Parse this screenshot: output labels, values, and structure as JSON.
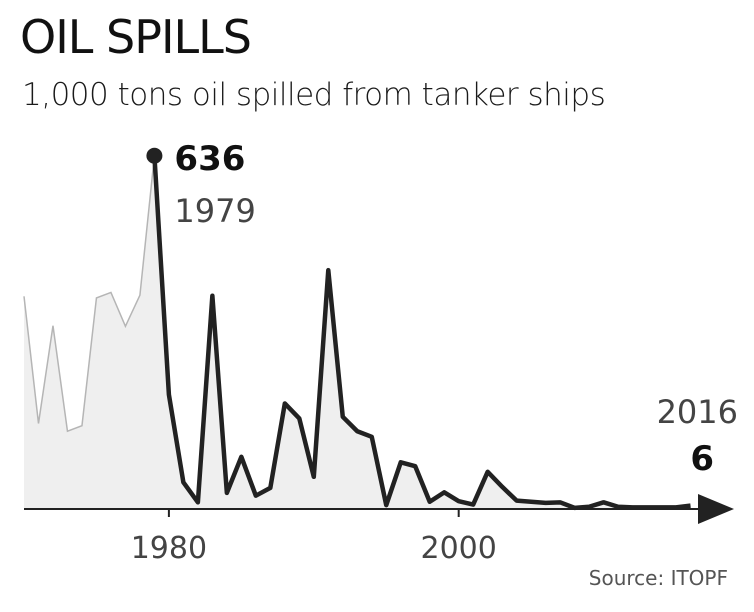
{
  "header": {
    "title": "OIL SPILLS",
    "subtitle": "1,000 tons oil spilled from tanker ships",
    "source": "Source: ITOPF"
  },
  "colors": {
    "line_dark": "#222222",
    "line_light": "#b5b5b5",
    "area_fill": "#efefef",
    "text": "#111111",
    "muted": "#444444"
  },
  "chart_data": {
    "type": "area",
    "title": "OIL SPILLS",
    "subtitle": "1,000 tons oil spilled from tanker ships",
    "xlabel": "",
    "ylabel": "",
    "x": [
      1970,
      1971,
      1972,
      1973,
      1974,
      1975,
      1976,
      1977,
      1978,
      1979,
      1980,
      1981,
      1982,
      1983,
      1984,
      1985,
      1986,
      1987,
      1988,
      1989,
      1990,
      1991,
      1992,
      1993,
      1994,
      1995,
      1996,
      1997,
      1998,
      1999,
      2000,
      2001,
      2002,
      2003,
      2004,
      2005,
      2006,
      2007,
      2008,
      2009,
      2010,
      2011,
      2012,
      2013,
      2014,
      2015,
      2016
    ],
    "y": [
      383,
      154,
      330,
      140,
      150,
      380,
      390,
      329,
      385,
      636,
      206,
      48,
      12,
      384,
      29,
      94,
      24,
      38,
      190,
      163,
      58,
      430,
      166,
      140,
      130,
      7,
      84,
      77,
      13,
      30,
      14,
      8,
      67,
      40,
      15,
      13,
      11,
      12,
      2,
      4,
      12,
      4,
      3,
      3,
      3,
      3,
      6
    ],
    "series": [
      {
        "name": "",
        "style": "light",
        "from": 1970,
        "to": 1979
      },
      {
        "name": "",
        "style": "dark",
        "from": 1979,
        "to": 2016
      }
    ],
    "xticks": [
      "1980",
      "2000"
    ],
    "xlim": [
      1970,
      2019
    ],
    "ylim": [
      0,
      650
    ],
    "grid": false,
    "legend": "none",
    "annotations": [
      {
        "x": 1979,
        "year_label": "1979",
        "value_label": "636",
        "marker": "dot"
      },
      {
        "x": 2016,
        "year_label": "2016",
        "value_label": "6",
        "marker": "arrow"
      }
    ]
  }
}
